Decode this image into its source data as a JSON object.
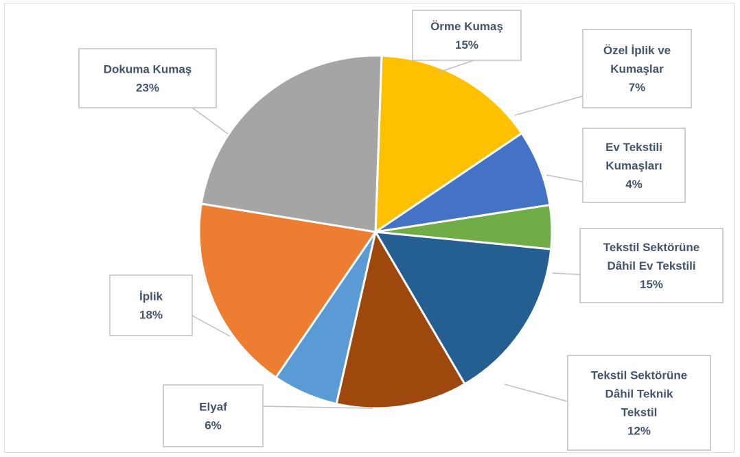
{
  "chart_data": {
    "type": "pie",
    "title": "",
    "legend": "none",
    "start_angle_deg": 272,
    "slices": [
      {
        "name": "Örme Kumaş",
        "label_lines": [
          "Örme Kumaş",
          "15%"
        ],
        "value": 15,
        "color": "#ffc000"
      },
      {
        "name": "Özel İplik ve Kumaşlar",
        "label_lines": [
          "Özel İplik ve",
          "Kumaşlar",
          "7%"
        ],
        "value": 7,
        "color": "#4472c4"
      },
      {
        "name": "Ev Tekstili Kumaşları",
        "label_lines": [
          "Ev Tekstili",
          "Kumaşları",
          "4%"
        ],
        "value": 4,
        "color": "#70ad47"
      },
      {
        "name": "Tekstil Sektörüne Dâhil Ev Tekstili",
        "label_lines": [
          "Tekstil Sektörüne",
          "Dâhil Ev Tekstili",
          "15%"
        ],
        "value": 15,
        "color": "#255e91"
      },
      {
        "name": "Tekstil Sektörüne Dâhil Teknik Tekstil",
        "label_lines": [
          "Tekstil Sektörüne",
          "Dâhil Teknik",
          "Tekstil",
          "12%"
        ],
        "value": 12,
        "color": "#9e480e"
      },
      {
        "name": "Elyaf",
        "label_lines": [
          "Elyaf",
          "6%"
        ],
        "value": 6,
        "color": "#5b9bd5"
      },
      {
        "name": "İplik",
        "label_lines": [
          "İplik",
          "18%"
        ],
        "value": 18,
        "color": "#ed7d31"
      },
      {
        "name": "Dokuma Kumaş",
        "label_lines": [
          "Dokuma Kumaş",
          "23%"
        ],
        "value": 23,
        "color": "#a5a5a5"
      }
    ]
  }
}
